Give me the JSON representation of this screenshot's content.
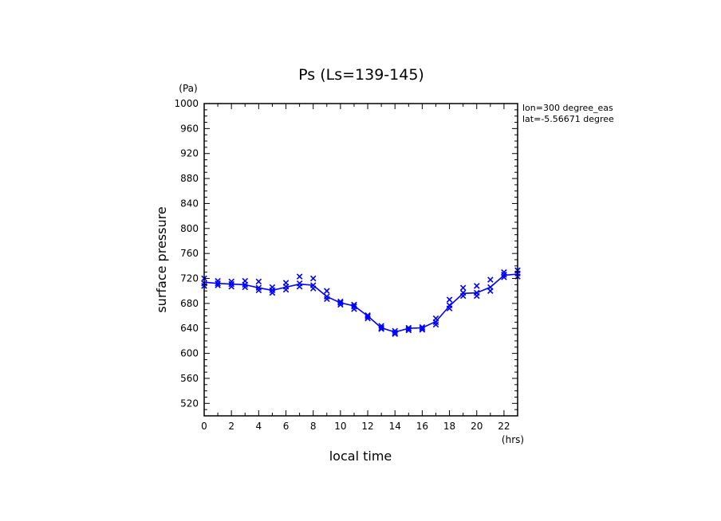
{
  "chart_data": {
    "type": "scatter",
    "title": "Ps (Ls=139-145)",
    "xlabel": "local time",
    "ylabel": "surface pressure",
    "x_unit": "(hrs)",
    "y_unit": "(Pa)",
    "xlim": [
      0,
      23
    ],
    "ylim": [
      500,
      1000
    ],
    "xticks": [
      "0",
      "2",
      "4",
      "6",
      "8",
      "10",
      "12",
      "14",
      "16",
      "18",
      "20",
      "22"
    ],
    "yticks": [
      "520",
      "560",
      "600",
      "640",
      "680",
      "720",
      "760",
      "800",
      "840",
      "880",
      "920",
      "960",
      "1000"
    ],
    "annotations": [
      "lon=300 degree_eas",
      "lat=-5.56671 degree"
    ],
    "color": "#0000ff",
    "mean_line": {
      "x": [
        0,
        1,
        2,
        3,
        4,
        5,
        6,
        7,
        8,
        9,
        10,
        11,
        12,
        13,
        14,
        15,
        16,
        17,
        18,
        19,
        20,
        21,
        22,
        23
      ],
      "y": [
        714,
        712,
        711,
        710,
        705,
        701,
        706,
        711,
        709,
        691,
        681,
        676,
        660,
        641,
        634,
        640,
        641,
        651,
        676,
        696,
        697,
        706,
        725,
        727
      ]
    },
    "markers": {
      "x": [
        0,
        0,
        0,
        1,
        1,
        1,
        2,
        2,
        2,
        3,
        3,
        3,
        4,
        4,
        4,
        5,
        5,
        5,
        6,
        6,
        6,
        7,
        7,
        7,
        8,
        8,
        8,
        9,
        9,
        9,
        10,
        10,
        10,
        11,
        11,
        11,
        12,
        12,
        12,
        13,
        13,
        13,
        14,
        14,
        14,
        15,
        15,
        15,
        16,
        16,
        16,
        17,
        17,
        17,
        18,
        18,
        18,
        19,
        19,
        19,
        20,
        20,
        20,
        21,
        21,
        21,
        22,
        22,
        22,
        23,
        23,
        23
      ],
      "y": [
        720,
        712,
        708,
        716,
        712,
        709,
        715,
        711,
        707,
        716,
        710,
        706,
        715,
        705,
        701,
        706,
        701,
        697,
        713,
        707,
        702,
        723,
        712,
        707,
        720,
        709,
        704,
        700,
        691,
        687,
        683,
        681,
        678,
        678,
        675,
        671,
        661,
        659,
        656,
        644,
        641,
        639,
        636,
        633,
        631,
        641,
        639,
        637,
        642,
        640,
        638,
        656,
        650,
        646,
        686,
        677,
        672,
        705,
        697,
        692,
        708,
        697,
        692,
        718,
        706,
        700,
        730,
        726,
        722,
        733,
        728,
        723
      ]
    }
  }
}
